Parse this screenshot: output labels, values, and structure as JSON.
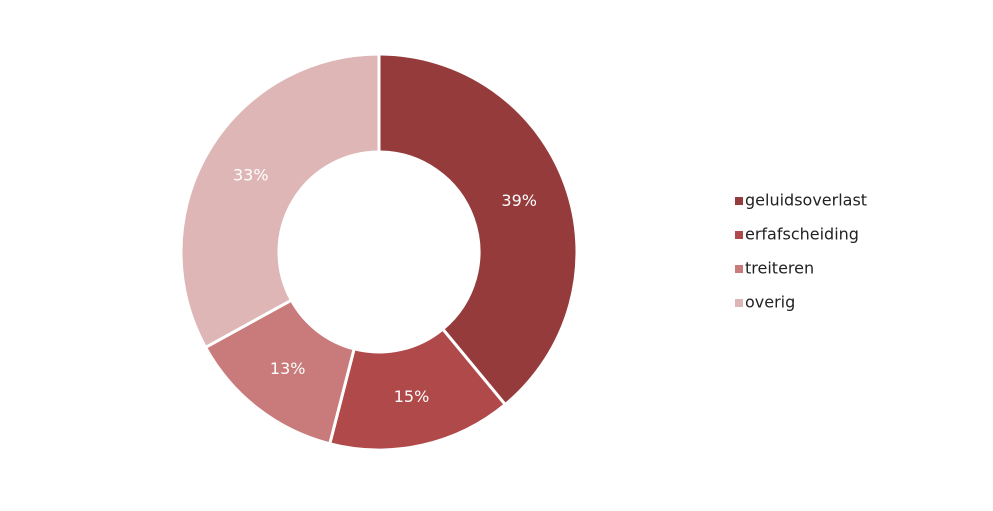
{
  "chart_data": {
    "type": "pie",
    "categories": [
      "geluidsoverlast",
      "erfafscheiding",
      "treiteren",
      "overig"
    ],
    "values": [
      39,
      15,
      13,
      33
    ],
    "value_labels": [
      "39%",
      "15%",
      "13%",
      "33%"
    ],
    "colors": [
      "#963b3b",
      "#b04949",
      "#c97b7b",
      "#dfb6b6"
    ],
    "legend": "right"
  }
}
